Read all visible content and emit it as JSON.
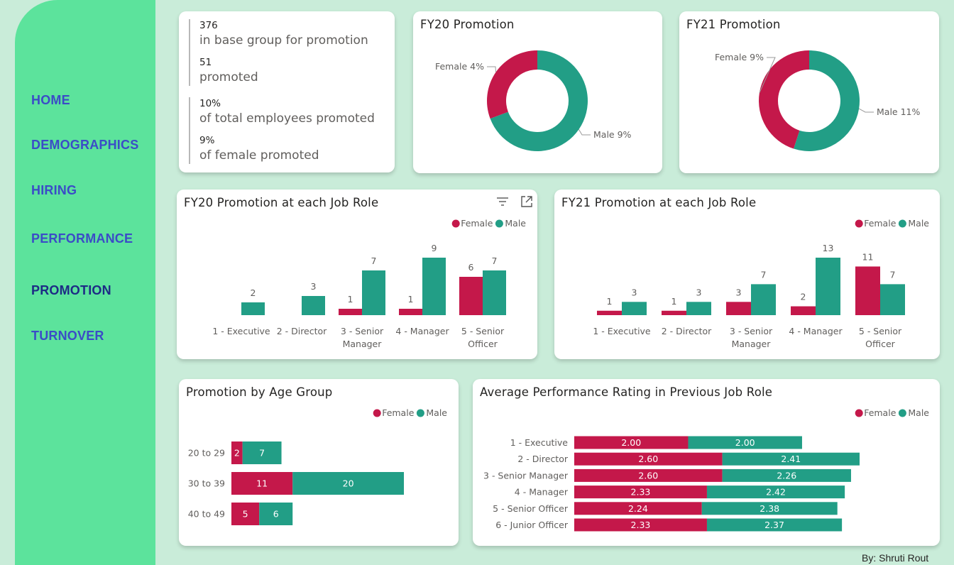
{
  "nav": {
    "items": [
      {
        "label": "HOME",
        "active": false
      },
      {
        "label": "DEMOGRAPHICS",
        "active": false
      },
      {
        "label": "HIRING",
        "active": false
      },
      {
        "label": "PERFORMANCE",
        "active": false
      },
      {
        "label": "PROMOTION",
        "active": true
      },
      {
        "label": "TURNOVER",
        "active": false
      }
    ]
  },
  "kpis": [
    {
      "value": "376",
      "label": "in base group for promotion"
    },
    {
      "value": "51",
      "label": "promoted"
    },
    {
      "value": "10%",
      "label": "of total employees promoted"
    },
    {
      "value": "9%",
      "label": "of female promoted"
    }
  ],
  "colors": {
    "female": "#c4184a",
    "male": "#229e86",
    "active_nav": "#1d2b85",
    "nav": "#3b4cc7"
  },
  "legend": {
    "female": "Female",
    "male": "Male"
  },
  "icons": [
    "filter-icon",
    "focus-mode-icon"
  ],
  "footer": "By: Shruti Rout",
  "chart_data": [
    {
      "id": "fy20_donut",
      "type": "pie",
      "title": "FY20 Promotion",
      "categories": [
        "Female",
        "Male"
      ],
      "values": [
        4,
        9
      ],
      "labels": [
        "Female 4%",
        "Male 9%"
      ]
    },
    {
      "id": "fy21_donut",
      "type": "pie",
      "title": "FY21 Promotion",
      "categories": [
        "Female",
        "Male"
      ],
      "values": [
        9,
        11
      ],
      "labels": [
        "Female 9%",
        "Male 11%"
      ]
    },
    {
      "id": "fy20_roles",
      "type": "bar",
      "title": "FY20 Promotion at each Job Role",
      "categories": [
        "1 - Executive",
        "2 - Director",
        "3 - Senior Manager",
        "4 - Manager",
        "5 - Senior Officer"
      ],
      "series": [
        {
          "name": "Female",
          "values": [
            null,
            null,
            1,
            1,
            6
          ]
        },
        {
          "name": "Male",
          "values": [
            2,
            3,
            7,
            9,
            7
          ]
        }
      ],
      "ylim": [
        0,
        9
      ],
      "legend": "top-right"
    },
    {
      "id": "fy21_roles",
      "type": "bar",
      "title": "FY21 Promotion at each Job Role",
      "categories": [
        "1 - Executive",
        "2 - Director",
        "3 - Senior Manager",
        "4 - Manager",
        "5 - Senior Officer"
      ],
      "series": [
        {
          "name": "Female",
          "values": [
            1,
            1,
            3,
            2,
            11
          ]
        },
        {
          "name": "Male",
          "values": [
            3,
            3,
            7,
            13,
            7
          ]
        }
      ],
      "ylim": [
        0,
        13
      ],
      "legend": "top-right"
    },
    {
      "id": "age_groups",
      "type": "bar",
      "orientation": "horizontal",
      "stacked": true,
      "title": "Promotion by Age Group",
      "categories": [
        "20 to 29",
        "30 to 39",
        "40 to 49"
      ],
      "series": [
        {
          "name": "Female",
          "values": [
            2,
            11,
            5
          ]
        },
        {
          "name": "Male",
          "values": [
            7,
            20,
            6
          ]
        }
      ],
      "xlim": [
        0,
        31
      ],
      "legend": "top-right"
    },
    {
      "id": "perf_rating",
      "type": "bar",
      "orientation": "horizontal",
      "stacked": true,
      "title": "Average Performance Rating in Previous Job Role",
      "categories": [
        "1 - Executive",
        "2 - Director",
        "3 - Senior Manager",
        "4 - Manager",
        "5 - Senior Officer",
        "6 - Junior Officer"
      ],
      "series": [
        {
          "name": "Female",
          "values": [
            2.0,
            2.6,
            2.6,
            2.33,
            2.24,
            2.33
          ]
        },
        {
          "name": "Male",
          "values": [
            2.0,
            2.41,
            2.26,
            2.42,
            2.38,
            2.37
          ]
        }
      ],
      "xlim": [
        0,
        5.01
      ],
      "legend": "top-right"
    }
  ]
}
